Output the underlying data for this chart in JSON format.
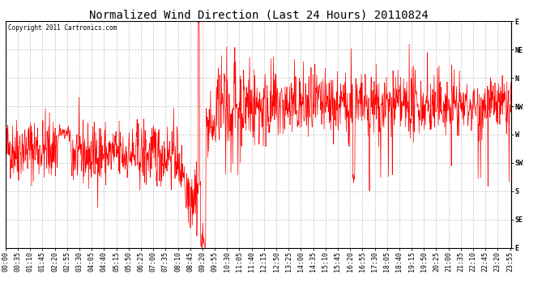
{
  "title": "Normalized Wind Direction (Last 24 Hours) 20110824",
  "copyright_text": "Copyright 2011 Cartronics.com",
  "line_color": "#ff0000",
  "background_color": "#ffffff",
  "grid_color": "#bbbbbb",
  "ytick_labels": [
    "E",
    "NE",
    "N",
    "NW",
    "W",
    "SW",
    "S",
    "SE",
    "E"
  ],
  "ytick_values": [
    8,
    7,
    6,
    5,
    4,
    3,
    2,
    1,
    0
  ],
  "ylim": [
    0,
    8
  ],
  "title_fontsize": 10,
  "tick_fontsize": 6,
  "copyright_fontsize": 5.5,
  "seed": 42
}
